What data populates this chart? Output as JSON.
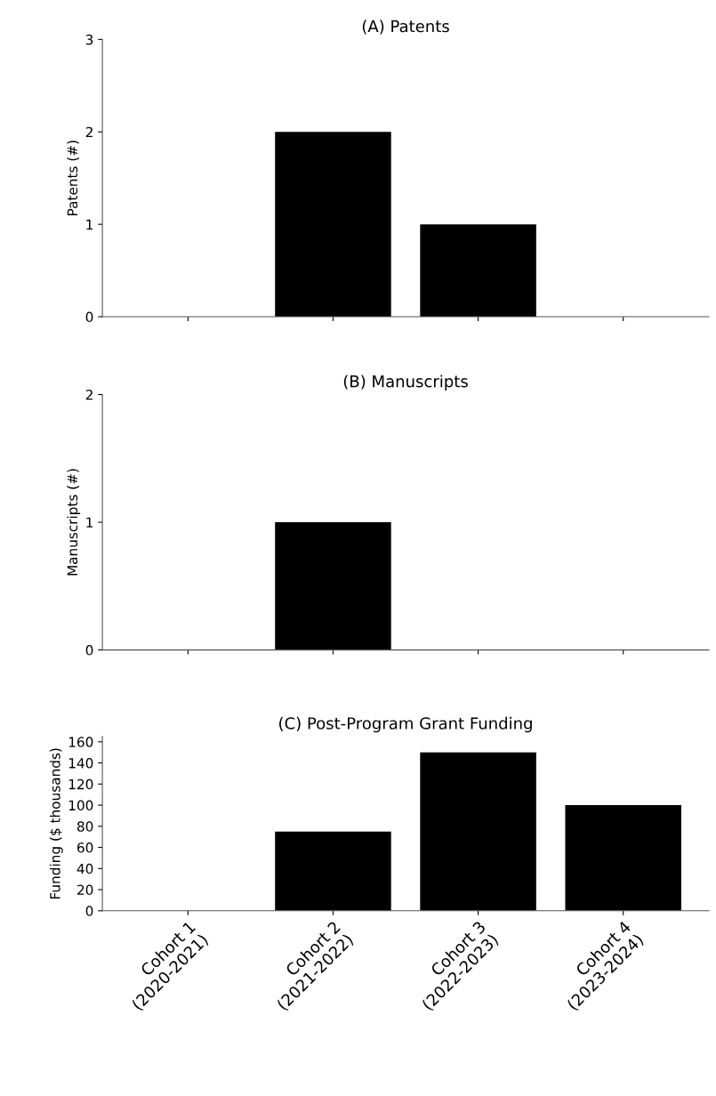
{
  "chart_data": [
    {
      "type": "bar",
      "title": "(A) Patents",
      "ylabel": "Patents (#)",
      "categories": [
        null,
        null,
        null,
        null
      ],
      "values": [
        0,
        2,
        1,
        0
      ],
      "color": "#000000",
      "ylim": [
        0,
        3
      ],
      "yticks": [
        0,
        1,
        2,
        3
      ],
      "grid": false,
      "legend": false
    },
    {
      "type": "bar",
      "title": "(B) Manuscripts",
      "ylabel": "Manuscripts (#)",
      "categories": [
        null,
        null,
        null,
        null
      ],
      "values": [
        0,
        1,
        0,
        0
      ],
      "color": "#000000",
      "ylim": [
        0,
        2
      ],
      "yticks": [
        0,
        1,
        2
      ],
      "grid": false,
      "legend": false
    },
    {
      "type": "bar",
      "title": "(C) Post-Program Grant Funding",
      "ylabel": "Funding ($ thousands)",
      "categories": [
        "Cohort 1\n(2020-2021)",
        "Cohort 2\n(2021-2022)",
        "Cohort 3\n(2022-2023)",
        "Cohort 4\n(2023-2024)"
      ],
      "values": [
        0,
        75,
        150,
        100
      ],
      "color": "#000000",
      "ylim": [
        0,
        165
      ],
      "yticks": [
        0,
        20,
        40,
        60,
        80,
        100,
        120,
        140,
        160
      ],
      "grid": false,
      "legend": false
    }
  ]
}
